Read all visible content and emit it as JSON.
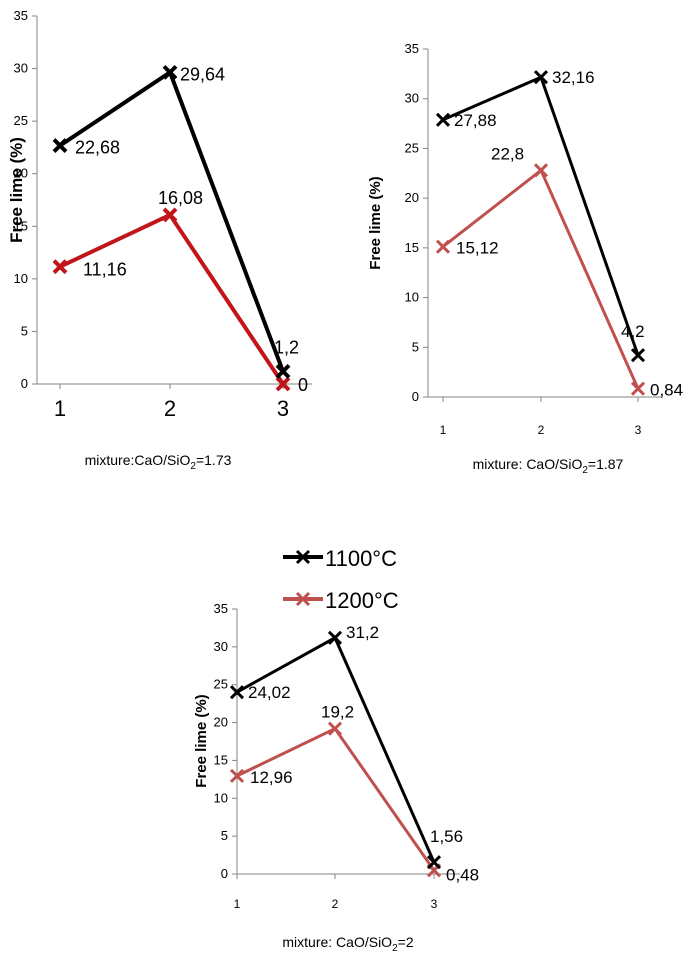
{
  "colors": {
    "s1100": "#000000",
    "s1200_bold": "#c0161b",
    "s1200": "#c0504d",
    "axis": "#868686"
  },
  "legend": {
    "s1100": "1100°C",
    "s1200": "1200°C"
  },
  "chart_data": [
    {
      "type": "line",
      "ylabel": "Free lime (%)",
      "xlabel_prefix": "mixture:CaO/SiO",
      "xlabel_sub": "2",
      "xlabel_suffix": "=1.73",
      "x": [
        "1",
        "2",
        "3"
      ],
      "ylim": [
        0,
        35
      ],
      "yticks": [
        "0",
        "5",
        "10",
        "15",
        "20",
        "25",
        "30",
        "35"
      ],
      "series": [
        {
          "name": "1100°C",
          "values": [
            22.68,
            29.64,
            1.2
          ],
          "labels": [
            "22,68",
            "29,64",
            "1,2"
          ]
        },
        {
          "name": "1200°C",
          "values": [
            11.16,
            16.08,
            0
          ],
          "labels": [
            "11,16",
            "16,08",
            "0"
          ]
        }
      ]
    },
    {
      "type": "line",
      "ylabel": "Free lime (%)",
      "xlabel_prefix": "mixture: CaO/SiO",
      "xlabel_sub": "2",
      "xlabel_suffix": "=1.87",
      "x": [
        "1",
        "2",
        "3"
      ],
      "ylim": [
        0,
        35
      ],
      "yticks": [
        "0",
        "5",
        "10",
        "15",
        "20",
        "25",
        "30",
        "35"
      ],
      "series": [
        {
          "name": "1100°C",
          "values": [
            27.88,
            32.16,
            4.2
          ],
          "labels": [
            "27,88",
            "32,16",
            "4,2"
          ]
        },
        {
          "name": "1200°C",
          "values": [
            15.12,
            22.8,
            0.84
          ],
          "labels": [
            "15,12",
            "22,8",
            "0,84"
          ]
        }
      ]
    },
    {
      "type": "line",
      "ylabel": "Free lime (%)",
      "xlabel_prefix": "mixture: CaO/SiO",
      "xlabel_sub": "2",
      "xlabel_suffix": "=2",
      "x": [
        "1",
        "2",
        "3"
      ],
      "ylim": [
        0,
        35
      ],
      "yticks": [
        "0",
        "5",
        "10",
        "15",
        "20",
        "25",
        "30",
        "35"
      ],
      "series": [
        {
          "name": "1100°C",
          "values": [
            24.02,
            31.2,
            1.56
          ],
          "labels": [
            "24,02",
            "31,2",
            "1,56"
          ]
        },
        {
          "name": "1200°C",
          "values": [
            12.96,
            19.2,
            0.48
          ],
          "labels": [
            "12,96",
            "19,2",
            "0,48"
          ]
        }
      ]
    }
  ]
}
